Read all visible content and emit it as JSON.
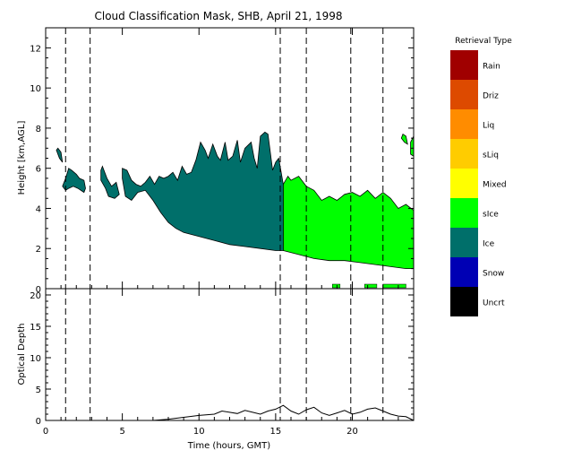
{
  "chart_data": [
    {
      "type": "heatmap",
      "title": "Cloud Classification Mask, SHB, April 21, 1998",
      "xlabel": "",
      "ylabel": "Height [km,AGL]",
      "xlim": [
        0,
        24
      ],
      "ylim": [
        0,
        13
      ],
      "y_ticks": [
        {
          "value": 0,
          "label": "0"
        },
        {
          "value": 2,
          "label": "2"
        },
        {
          "value": 4,
          "label": "4"
        },
        {
          "value": 6,
          "label": "6"
        },
        {
          "value": 8,
          "label": "8"
        },
        {
          "value": 10,
          "label": "10"
        },
        {
          "value": 12,
          "label": "12"
        }
      ],
      "legend": {
        "title": "Retrieval Type",
        "placement": "right",
        "items": [
          {
            "label": "Rain",
            "color": "#a00000"
          },
          {
            "label": "Driz",
            "color": "#dd4a00"
          },
          {
            "label": "Liq",
            "color": "#ff8c00"
          },
          {
            "label": "sLiq",
            "color": "#ffcc00"
          },
          {
            "label": "Mixed",
            "color": "#ffff00"
          },
          {
            "label": "sIce",
            "color": "#00ff00"
          },
          {
            "label": "Ice",
            "color": "#006f6a"
          },
          {
            "label": "Snow",
            "color": "#0000b4"
          },
          {
            "label": "Uncrt",
            "color": "#000000"
          }
        ]
      },
      "dashed_time_markers": [
        1.3,
        2.9,
        15.3,
        17.0,
        19.9,
        22.0
      ],
      "regions": [
        {
          "class": "Ice",
          "color": "#006f6a",
          "polygon": [
            [
              5.0,
              5.5
            ],
            [
              5.2,
              4.6
            ],
            [
              5.6,
              4.4
            ],
            [
              6.0,
              4.8
            ],
            [
              6.5,
              4.9
            ],
            [
              7.0,
              4.4
            ],
            [
              7.5,
              3.8
            ],
            [
              8.0,
              3.3
            ],
            [
              8.5,
              3.0
            ],
            [
              9.0,
              2.8
            ],
            [
              10.0,
              2.6
            ],
            [
              11.0,
              2.4
            ],
            [
              12.0,
              2.2
            ],
            [
              13.0,
              2.1
            ],
            [
              14.0,
              2.0
            ],
            [
              15.0,
              1.9
            ],
            [
              15.5,
              1.9
            ],
            [
              15.5,
              5.2
            ],
            [
              15.2,
              6.5
            ],
            [
              15.0,
              6.3
            ],
            [
              14.8,
              5.9
            ],
            [
              14.5,
              7.7
            ],
            [
              14.3,
              7.8
            ],
            [
              14.0,
              7.6
            ],
            [
              13.8,
              6.0
            ],
            [
              13.6,
              6.5
            ],
            [
              13.4,
              7.3
            ],
            [
              13.0,
              7.0
            ],
            [
              12.7,
              6.3
            ],
            [
              12.5,
              7.4
            ],
            [
              12.2,
              6.6
            ],
            [
              11.9,
              6.4
            ],
            [
              11.7,
              7.3
            ],
            [
              11.4,
              6.4
            ],
            [
              11.2,
              6.6
            ],
            [
              10.9,
              7.2
            ],
            [
              10.6,
              6.5
            ],
            [
              10.4,
              6.9
            ],
            [
              10.1,
              7.3
            ],
            [
              9.8,
              6.4
            ],
            [
              9.5,
              5.8
            ],
            [
              9.2,
              5.7
            ],
            [
              8.9,
              6.1
            ],
            [
              8.6,
              5.4
            ],
            [
              8.3,
              5.8
            ],
            [
              8.0,
              5.6
            ],
            [
              7.7,
              5.5
            ],
            [
              7.4,
              5.6
            ],
            [
              7.1,
              5.2
            ],
            [
              6.8,
              5.6
            ],
            [
              6.5,
              5.3
            ],
            [
              6.2,
              5.1
            ],
            [
              5.9,
              5.2
            ],
            [
              5.6,
              5.4
            ],
            [
              5.3,
              5.9
            ],
            [
              5.0,
              6.0
            ]
          ]
        },
        {
          "class": "Ice",
          "color": "#006f6a",
          "polygon": [
            [
              1.1,
              5.1
            ],
            [
              1.3,
              4.9
            ],
            [
              1.5,
              5.0
            ],
            [
              1.8,
              5.1
            ],
            [
              2.1,
              5.0
            ],
            [
              2.5,
              4.8
            ],
            [
              2.6,
              5.0
            ],
            [
              2.5,
              5.4
            ],
            [
              2.2,
              5.5
            ],
            [
              2.0,
              5.7
            ],
            [
              1.7,
              5.9
            ],
            [
              1.5,
              6.0
            ],
            [
              1.3,
              5.5
            ],
            [
              1.2,
              5.3
            ]
          ]
        },
        {
          "class": "Ice",
          "color": "#006f6a",
          "polygon": [
            [
              3.6,
              5.4
            ],
            [
              3.9,
              5.0
            ],
            [
              4.1,
              4.6
            ],
            [
              4.5,
              4.5
            ],
            [
              4.8,
              4.7
            ],
            [
              4.6,
              5.3
            ],
            [
              4.3,
              5.1
            ],
            [
              4.0,
              5.5
            ],
            [
              3.7,
              6.1
            ],
            [
              3.6,
              5.9
            ]
          ]
        },
        {
          "class": "Ice",
          "color": "#006f6a",
          "polygon": [
            [
              0.7,
              6.9
            ],
            [
              0.9,
              6.5
            ],
            [
              1.1,
              6.3
            ],
            [
              1.0,
              6.8
            ],
            [
              0.8,
              7.0
            ]
          ]
        },
        {
          "class": "sIce",
          "color": "#00ff00",
          "polygon": [
            [
              15.5,
              1.9
            ],
            [
              16.5,
              1.7
            ],
            [
              17.5,
              1.5
            ],
            [
              18.5,
              1.4
            ],
            [
              19.5,
              1.4
            ],
            [
              20.5,
              1.3
            ],
            [
              21.5,
              1.2
            ],
            [
              22.5,
              1.1
            ],
            [
              23.5,
              1.0
            ],
            [
              24.0,
              1.0
            ],
            [
              24.0,
              3.9
            ],
            [
              23.5,
              4.2
            ],
            [
              23.0,
              4.0
            ],
            [
              22.5,
              4.5
            ],
            [
              22.0,
              4.8
            ],
            [
              21.5,
              4.5
            ],
            [
              21.0,
              4.9
            ],
            [
              20.5,
              4.6
            ],
            [
              20.0,
              4.8
            ],
            [
              19.5,
              4.7
            ],
            [
              19.0,
              4.4
            ],
            [
              18.5,
              4.6
            ],
            [
              18.0,
              4.4
            ],
            [
              17.5,
              4.9
            ],
            [
              17.0,
              5.1
            ],
            [
              16.5,
              5.6
            ],
            [
              16.0,
              5.4
            ],
            [
              15.8,
              5.6
            ],
            [
              15.5,
              5.2
            ]
          ]
        },
        {
          "class": "sIce",
          "color": "#00ff00",
          "polygon": [
            [
              23.2,
              7.5
            ],
            [
              23.4,
              7.3
            ],
            [
              23.6,
              7.2
            ],
            [
              23.5,
              7.6
            ],
            [
              23.3,
              7.7
            ]
          ]
        },
        {
          "class": "sIce",
          "color": "#00ff00",
          "polygon": [
            [
              23.8,
              6.7
            ],
            [
              24.0,
              6.6
            ],
            [
              24.0,
              7.6
            ],
            [
              23.8,
              7.3
            ]
          ]
        }
      ],
      "precip_flag_segments": [
        {
          "class": "sIce",
          "color": "#00ff00",
          "x_start": 18.7,
          "x_end": 19.2
        },
        {
          "class": "sIce",
          "color": "#00ff00",
          "x_start": 20.8,
          "x_end": 21.6
        },
        {
          "class": "sIce",
          "color": "#00ff00",
          "x_start": 22.0,
          "x_end": 23.5
        }
      ]
    },
    {
      "type": "line",
      "xlabel": "Time (hours, GMT)",
      "ylabel": "Optical Depth",
      "xlim": [
        0,
        24
      ],
      "ylim": [
        0,
        21
      ],
      "x_ticks": [
        {
          "value": 0,
          "label": "0"
        },
        {
          "value": 5,
          "label": "5"
        },
        {
          "value": 10,
          "label": "10"
        },
        {
          "value": 15,
          "label": "15"
        },
        {
          "value": 20,
          "label": "20"
        }
      ],
      "y_ticks": [
        {
          "value": 0,
          "label": "0"
        },
        {
          "value": 5,
          "label": "5"
        },
        {
          "value": 10,
          "label": "10"
        },
        {
          "value": 15,
          "label": "15"
        },
        {
          "value": 20,
          "label": "20"
        }
      ],
      "dashed_time_markers": [
        1.3,
        2.9,
        15.3,
        17.0,
        19.9,
        22.0
      ],
      "series": [
        {
          "x": [
            5.0,
            6.0,
            7.0,
            8.0,
            9.0,
            10.0,
            11.0,
            11.5,
            12.0,
            12.5,
            13.0,
            13.5,
            14.0,
            14.5,
            15.0,
            15.5,
            16.0,
            16.5,
            17.0,
            17.5,
            18.0,
            18.5,
            19.0,
            19.5,
            20.0,
            20.5,
            21.0,
            21.5,
            22.0,
            22.5,
            23.0,
            23.5,
            24.0
          ],
          "values": [
            0.0,
            0.0,
            0.0,
            0.2,
            0.5,
            0.8,
            1.0,
            1.5,
            1.3,
            1.1,
            1.6,
            1.3,
            1.0,
            1.5,
            1.8,
            2.4,
            1.5,
            1.0,
            1.7,
            2.1,
            1.2,
            0.8,
            1.2,
            1.6,
            1.0,
            1.3,
            1.8,
            2.0,
            1.5,
            1.0,
            0.7,
            0.6,
            0.0
          ]
        }
      ]
    }
  ]
}
